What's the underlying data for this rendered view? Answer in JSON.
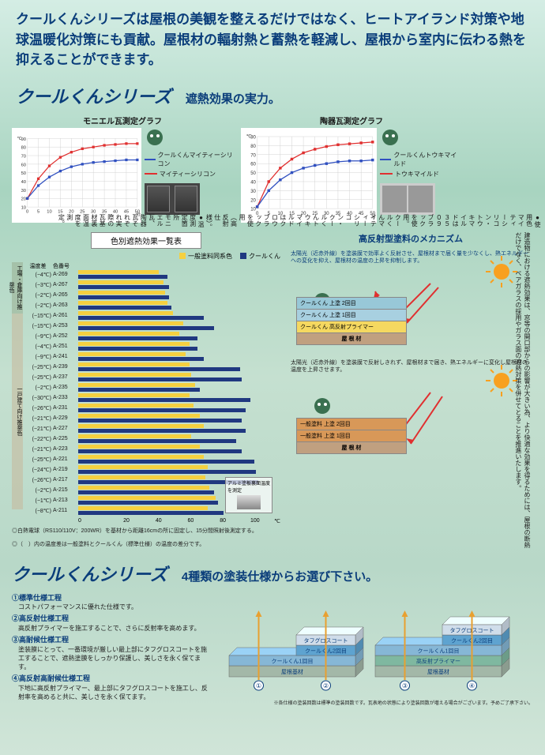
{
  "header_text": "クールくんシリーズは屋根の美観を整えるだけではなく、ヒートアイランド対策や地球温暖化対策にも貢献。屋根材の輻射熱と蓄熱を軽減し、屋根から室内に伝わる熱を抑えることができます。",
  "series_title": "クールくんシリーズ",
  "effect_subtitle": "遮熱効果の実力。",
  "side_note_top": "●使用色　マイティーシリコン・トウキマイルドは３５０９ブラックを使用。クールくんマイティーシリコン・クールくんトウキマイルドはクロウブラックを使用（高反射仕様）。●温度測定箇所　モニエル瓦、陶器瓦それぞれ実際の瓦基材裏面温度を測定。",
  "chart1": {
    "title": "モニエル瓦測定グラフ",
    "ylabel": "℃",
    "xlabel": "分",
    "yticks": [
      10,
      20,
      30,
      40,
      50,
      60,
      70,
      80,
      90
    ],
    "xticks": [
      0,
      5,
      10,
      15,
      20,
      25,
      30,
      35,
      40,
      45,
      50
    ],
    "series_blue_label": "クールくんマイティーシリコン",
    "series_red_label": "マイティーシリコン",
    "blue_color": "#3050c0",
    "red_color": "#e03030",
    "blue_data": [
      20,
      35,
      45,
      52,
      57,
      60,
      62,
      63,
      64,
      65,
      65
    ],
    "red_data": [
      20,
      43,
      58,
      68,
      74,
      78,
      80,
      82,
      83,
      84,
      84
    ]
  },
  "chart2": {
    "title": "陶器瓦測定グラフ",
    "ylabel": "℃",
    "xlabel": "分",
    "yticks": [
      10,
      20,
      30,
      40,
      50,
      60,
      70,
      80,
      90
    ],
    "xticks": [
      0,
      5,
      10,
      15,
      20,
      25,
      30,
      35,
      40,
      45,
      50
    ],
    "series_blue_label": "クールくんトウキマイルド",
    "series_red_label": "トウキマイルド",
    "blue_color": "#3050c0",
    "red_color": "#e03030",
    "blue_data": [
      12,
      30,
      42,
      50,
      55,
      58,
      60,
      62,
      63,
      63,
      64
    ],
    "red_data": [
      12,
      40,
      55,
      65,
      72,
      76,
      79,
      81,
      82,
      83,
      84
    ]
  },
  "barChart": {
    "title": "色別遮熱効果一覧表",
    "header_temp": "温度差",
    "header_code": "色番号",
    "legend_yellow": "一般塗料同系色",
    "legend_navy": "クールくん",
    "yellow_color": "#f5d040",
    "navy_color": "#203880",
    "xticks": [
      0,
      20,
      40,
      60,
      80,
      100
    ],
    "xunit": "℃",
    "group_a_label": "工場・倉庫向け推奨色",
    "group_b_label": "一戸建て向け推奨色",
    "rows": [
      {
        "temp": "(−4℃)",
        "code": "A-269",
        "y": 40,
        "n": 44,
        "g": "a"
      },
      {
        "temp": "(−3℃)",
        "code": "A-267",
        "y": 42,
        "n": 45,
        "g": "a"
      },
      {
        "temp": "(−2℃)",
        "code": "A-265",
        "y": 43,
        "n": 45,
        "g": "a"
      },
      {
        "temp": "(−2℃)",
        "code": "A-263",
        "y": 44,
        "n": 46,
        "g": "a"
      },
      {
        "temp": "(−15℃)",
        "code": "A-261",
        "y": 47,
        "n": 62,
        "g": "a"
      },
      {
        "temp": "(−15℃)",
        "code": "A-253",
        "y": 52,
        "n": 67,
        "g": "b"
      },
      {
        "temp": "(−9℃)",
        "code": "A-252",
        "y": 50,
        "n": 59,
        "g": "b"
      },
      {
        "temp": "(−4℃)",
        "code": "A-251",
        "y": 55,
        "n": 59,
        "g": "b"
      },
      {
        "temp": "(−9℃)",
        "code": "A-241",
        "y": 53,
        "n": 62,
        "g": "b"
      },
      {
        "temp": "(−25℃)",
        "code": "A-239",
        "y": 55,
        "n": 80,
        "g": "b"
      },
      {
        "temp": "(−25℃)",
        "code": "A-237",
        "y": 56,
        "n": 81,
        "g": "b"
      },
      {
        "temp": "(−2℃)",
        "code": "A-235",
        "y": 58,
        "n": 60,
        "g": "b"
      },
      {
        "temp": "(−30℃)",
        "code": "A-233",
        "y": 55,
        "n": 85,
        "g": "b"
      },
      {
        "temp": "(−26℃)",
        "code": "A-231",
        "y": 57,
        "n": 83,
        "g": "b"
      },
      {
        "temp": "(−21℃)",
        "code": "A-229",
        "y": 60,
        "n": 81,
        "g": "b"
      },
      {
        "temp": "(−21℃)",
        "code": "A-227",
        "y": 62,
        "n": 83,
        "g": "b"
      },
      {
        "temp": "(−22℃)",
        "code": "A-225",
        "y": 56,
        "n": 78,
        "g": "b"
      },
      {
        "temp": "(−21℃)",
        "code": "A-223",
        "y": 60,
        "n": 81,
        "g": "b"
      },
      {
        "temp": "(−25℃)",
        "code": "A-221",
        "y": 62,
        "n": 87,
        "g": "b"
      },
      {
        "temp": "(−24℃)",
        "code": "A-219",
        "y": 64,
        "n": 88,
        "g": "b"
      },
      {
        "temp": "(−26℃)",
        "code": "A-217",
        "y": 63,
        "n": 89,
        "g": "b"
      },
      {
        "temp": "(−2℃)",
        "code": "A-215",
        "y": 65,
        "n": 67,
        "g": "b"
      },
      {
        "temp": "(−1℃)",
        "code": "A-213",
        "y": 68,
        "n": 69,
        "g": "b"
      },
      {
        "temp": "(−8℃)",
        "code": "A-211",
        "y": 64,
        "n": 72,
        "g": "b"
      }
    ],
    "footnote1": "◎白熱電球（RS110/110V：200WR）を基材から距離16cmの所に固定し、15分間照射後測定する。",
    "footnote2": "◎（　）内の温度差は一般塗料とクールくん（標準仕様）の温度の差分です。",
    "test_note": "アルミ塗板裏面温度を測定"
  },
  "mechanism": {
    "title": "高反射型塗料のメカニズム",
    "box1_text": "太陽光（近赤外線）を塗装膜で効率よく反射させ、屋根材まで届く量を少なくし、熱エネルギーへの変化を抑え、屋根材の温度の上昇を抑制します。",
    "box1_layers": [
      "クールくん 上塗 2回目",
      "クールくん 上塗 1回目",
      "クールくん 高反射プライマー",
      "屋 根 材"
    ],
    "box2_text": "太陽光（近赤外線）を塗装膜で反射しきれず、屋根材まで届き、熱エネルギーに変化し屋根材の温度を上昇させます。",
    "box2_layers": [
      "一般塗料 上塗 2回目",
      "一般塗料 上塗 1回目",
      "屋 根 材"
    ],
    "side_text": "建造物における遮熱効果は、窓等の開口部からの影響が大きい為、より快適な効果を得るためには、屋根の断熱だけでなく、ペアガラスの採用やガラス面の遮熱対策を併せてとることを推進いたします。"
  },
  "bottomSection": {
    "series_title": "クールくんシリーズ",
    "subtitle": "4種類の塗装仕様からお選び下さい。",
    "specs": [
      {
        "num": "①",
        "title": "標準仕様工程",
        "desc": "コストパフォーマンスに優れた仕様です。"
      },
      {
        "num": "②",
        "title": "高反射仕様工程",
        "desc": "高反射プライマーを施工することで、さらに反射率を高めます。"
      },
      {
        "num": "③",
        "title": "高耐候仕様工程",
        "desc": "塗装膜にとって、一番環境が厳しい最上部にタフグロスコートを施工することで、遮熱塗膜をしっかり保護し、美しさを永く保てます。"
      },
      {
        "num": "④",
        "title": "高反射高耐候仕様工程",
        "desc": "下地に高反射プライマー、最上部にタフグロスコートを施工し、反射率を高めると共に、美しさを永く保てます。"
      }
    ],
    "diagram_labels": {
      "tafgloss": "タフグロスコート",
      "cool2": "クールくん2回目",
      "cool1": "クールくん1回目",
      "primer": "高反射プライマー",
      "base": "屋根基材",
      "nums": [
        "①",
        "②",
        "③",
        "④"
      ]
    },
    "footnote": "※各仕様の塗装回数は標準の塗装回数です。瓦表地の状態により塗装回数が増える場合がございます。予めご了承下さい。"
  }
}
